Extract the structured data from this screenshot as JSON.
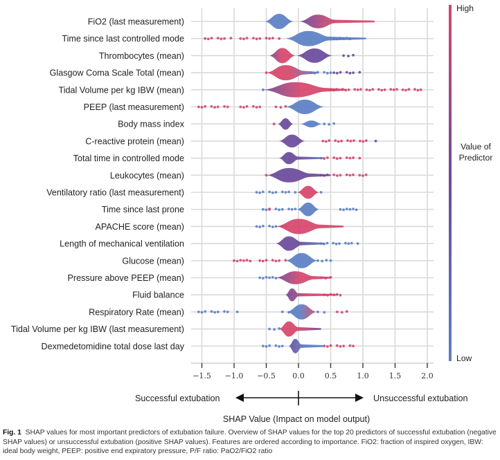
{
  "chart_data": {
    "type": "scatter",
    "subtype": "shap-beeswarm",
    "xlabel": "SHAP Value (Impact on model output)",
    "direction_left": "Successful extubation",
    "direction_right": "Unsuccessful extubation",
    "xlim": [
      -1.6,
      2.1
    ],
    "xticks": [
      -1.5,
      -1.0,
      -0.5,
      0.0,
      0.5,
      1.0,
      1.5,
      2.0
    ],
    "xtick_labels": [
      "−1.5",
      "−1.0",
      "−0.5",
      "0.0",
      "0.5",
      "1.0",
      "1.5",
      "2.0"
    ],
    "grid": true,
    "colorbar": {
      "title_line1": "Value of",
      "title_line2": "Predictor",
      "high_label": "High",
      "low_label": "Low",
      "high_color": "#d6456a",
      "low_color": "#5b7fc4",
      "mid_color": "#6a4a9a",
      "placement": "right"
    },
    "features": [
      {
        "name": "FiO2 (last measurement)",
        "clusters": [
          {
            "center": -0.3,
            "half_width": 0.22,
            "height": 1.0,
            "color": "low"
          },
          {
            "center": 0.3,
            "half_width": 0.28,
            "height": 0.9,
            "color": "high",
            "tail_right": 0.6,
            "color_from": "mid"
          }
        ],
        "dots": [
          {
            "from": 0.55,
            "to": 0.6,
            "color": "high"
          }
        ]
      },
      {
        "name": "Time since last controlled mode",
        "clusters": [
          {
            "center": 0.15,
            "half_width": 0.35,
            "height": 1.0,
            "color": "low",
            "tail_right": 0.55
          }
        ],
        "dots": [
          {
            "from": -1.45,
            "to": -1.05,
            "color": "high"
          },
          {
            "from": -0.9,
            "to": -0.4,
            "color": "high"
          },
          {
            "from": -0.3,
            "to": -0.3,
            "color": "high"
          },
          {
            "from": 0.55,
            "to": 0.8,
            "color": "low"
          }
        ]
      },
      {
        "name": "Thrombocytes (mean)",
        "clusters": [
          {
            "center": -0.25,
            "half_width": 0.2,
            "height": 1.0,
            "color": "high",
            "color_from": "mid"
          },
          {
            "center": 0.25,
            "half_width": 0.28,
            "height": 0.95,
            "color": "mid"
          }
        ],
        "dots": [
          {
            "from": 0.7,
            "to": 0.85,
            "color": "mid"
          }
        ]
      },
      {
        "name": "Glasgow Coma Scale Total (mean)",
        "clusters": [
          {
            "center": -0.2,
            "half_width": 0.3,
            "height": 1.0,
            "color": "high",
            "color_to": "low",
            "tail_right": 0.2
          }
        ],
        "dots": [
          {
            "from": 0.2,
            "to": 0.5,
            "color": "low"
          },
          {
            "from": 0.55,
            "to": 0.95,
            "color": "mid"
          },
          {
            "from": -0.5,
            "to": -0.5,
            "color": "high"
          }
        ]
      },
      {
        "name": "Tidal Volume per kg IBW (mean)",
        "clusters": [
          {
            "center": -0.05,
            "half_width": 0.5,
            "height": 1.0,
            "color": "high",
            "color_from": "mid",
            "tail_right": 0.3
          }
        ],
        "dots": [
          {
            "from": 0.5,
            "to": 1.9,
            "color": "high"
          },
          {
            "from": -0.55,
            "to": -0.55,
            "color": "low"
          }
        ]
      },
      {
        "name": "PEEP (last measurement)",
        "clusters": [
          {
            "center": 0.1,
            "half_width": 0.3,
            "height": 0.95,
            "color": "low"
          }
        ],
        "dots": [
          {
            "from": -1.55,
            "to": -1.1,
            "color": "high"
          },
          {
            "from": -0.9,
            "to": -0.55,
            "color": "high"
          },
          {
            "from": -0.35,
            "to": -0.2,
            "color": "high"
          }
        ]
      },
      {
        "name": "Body mass index",
        "clusters": [
          {
            "center": -0.2,
            "half_width": 0.12,
            "height": 0.75,
            "color": "mid"
          },
          {
            "center": 0.2,
            "half_width": 0.17,
            "height": 0.45,
            "color": "low"
          }
        ],
        "dots": [
          {
            "from": -0.38,
            "to": -0.38,
            "color": "high"
          },
          {
            "from": 0.4,
            "to": 0.55,
            "color": "low"
          }
        ]
      },
      {
        "name": "C-reactive protein (mean)",
        "clusters": [
          {
            "center": -0.1,
            "half_width": 0.2,
            "height": 0.85,
            "color": "mid"
          }
        ],
        "dots": [
          {
            "from": 0.38,
            "to": 1.1,
            "color": "high"
          },
          {
            "from": 1.2,
            "to": 1.2,
            "color": "mid"
          }
        ]
      },
      {
        "name": "Total time in controlled mode",
        "clusters": [
          {
            "center": -0.15,
            "half_width": 0.15,
            "height": 0.8,
            "color": "mid",
            "color_to": "low",
            "tail_right": 0.4
          }
        ],
        "dots": [
          {
            "from": 0.35,
            "to": 0.95,
            "color": "high"
          }
        ]
      },
      {
        "name": "Leukocytes (mean)",
        "clusters": [
          {
            "center": -0.15,
            "half_width": 0.35,
            "height": 0.95,
            "color": "mid",
            "tail_right": 0.3
          }
        ],
        "dots": [
          {
            "from": 0.35,
            "to": 1.05,
            "color": "high"
          },
          {
            "from": -0.5,
            "to": -0.45,
            "color": "high"
          }
        ]
      },
      {
        "name": "Ventilatory ratio (last measurement)",
        "clusters": [
          {
            "center": 0.15,
            "half_width": 0.17,
            "height": 0.85,
            "color": "high"
          }
        ],
        "dots": [
          {
            "from": -0.65,
            "to": -0.05,
            "color": "low"
          },
          {
            "from": 0.35,
            "to": 0.4,
            "color": "low"
          }
        ]
      },
      {
        "name": "Time since last prone",
        "clusters": [
          {
            "center": 0.15,
            "half_width": 0.17,
            "height": 0.9,
            "color": "low"
          }
        ],
        "dots": [
          {
            "from": -0.55,
            "to": -0.05,
            "color": "low"
          },
          {
            "from": -0.45,
            "to": -0.45,
            "color": "high"
          },
          {
            "from": 0.65,
            "to": 0.9,
            "color": "low"
          }
        ]
      },
      {
        "name": "APACHE score (mean)",
        "clusters": [
          {
            "center": 0.0,
            "half_width": 0.35,
            "height": 1.0,
            "color": "high",
            "tail_right": 0.35
          }
        ],
        "dots": [
          {
            "from": -0.65,
            "to": -0.2,
            "color": "low"
          }
        ]
      },
      {
        "name": "Length of mechanical ventilation",
        "clusters": [
          {
            "center": -0.15,
            "half_width": 0.2,
            "height": 0.95,
            "color": "mid",
            "color_to": "low",
            "tail_right": 0.35
          }
        ],
        "dots": [
          {
            "from": 0.35,
            "to": 0.92,
            "color": "low"
          }
        ]
      },
      {
        "name": "Glucose (mean)",
        "clusters": [
          {
            "center": 0.05,
            "half_width": 0.25,
            "height": 1.0,
            "color": "low"
          }
        ],
        "dots": [
          {
            "from": -1.0,
            "to": -0.75,
            "color": "high"
          },
          {
            "from": -0.6,
            "to": -0.2,
            "color": "high"
          },
          {
            "from": 0.3,
            "to": 0.5,
            "color": "low"
          }
        ]
      },
      {
        "name": "Pressure above PEEP (mean)",
        "clusters": [
          {
            "center": -0.05,
            "half_width": 0.3,
            "height": 0.85,
            "color": "high",
            "color_from": "mid",
            "tail_right": 0.25
          }
        ],
        "dots": [
          {
            "from": -0.6,
            "to": -0.35,
            "color": "low"
          },
          {
            "from": 0.35,
            "to": 0.5,
            "color": "high"
          }
        ]
      },
      {
        "name": "Fluid balance",
        "clusters": [
          {
            "center": -0.1,
            "half_width": 0.1,
            "height": 0.85,
            "color": "high",
            "color_from": "mid",
            "tail_right": 0.6
          }
        ],
        "dots": [
          {
            "from": 0.4,
            "to": 0.65,
            "color": "high"
          }
        ]
      },
      {
        "name": "Respiratory Rate (mean)",
        "clusters": [
          {
            "center": 0.05,
            "half_width": 0.23,
            "height": 1.0,
            "color": "low",
            "color_to": "high"
          }
        ],
        "dots": [
          {
            "from": -1.55,
            "to": -1.1,
            "color": "low"
          },
          {
            "from": -0.95,
            "to": -0.95,
            "color": "low"
          },
          {
            "from": -0.25,
            "to": -0.15,
            "color": "low"
          },
          {
            "from": 0.3,
            "to": 0.4,
            "color": "low"
          },
          {
            "from": 0.6,
            "to": 0.75,
            "color": "high"
          }
        ]
      },
      {
        "name": "Tidal Volume per kg IBW (last measurement)",
        "clusters": [
          {
            "center": -0.15,
            "half_width": 0.15,
            "height": 1.0,
            "color": "high",
            "color_to": "mid",
            "tail_right": 0.35
          }
        ],
        "dots": [
          {
            "from": -0.45,
            "to": -0.3,
            "color": "low"
          }
        ]
      },
      {
        "name": "Dexmedetomidine total dose last day",
        "clusters": [
          {
            "center": -0.05,
            "half_width": 0.1,
            "height": 0.95,
            "color": "low",
            "color_from": "mid",
            "tail_right": 0.35
          }
        ],
        "dots": [
          {
            "from": -0.55,
            "to": -0.2,
            "color": "low"
          },
          {
            "from": 0.4,
            "to": 0.85,
            "color": "high"
          }
        ]
      }
    ]
  },
  "caption": {
    "figure_label": "Fig. 1",
    "text": "SHAP values for most important predictors of extubation failure. Overview of SHAP values for the top 20 predictors of successful extubation (negative SHAP values) or unsuccessful extubation (positive SHAP values). Features are ordered according to importance. FiO2: fraction of inspired oxygen, IBW: ideal body weight, PEEP: positive end expiratory pressure, P/F ratio: PaO2/FiO2 ratio"
  }
}
